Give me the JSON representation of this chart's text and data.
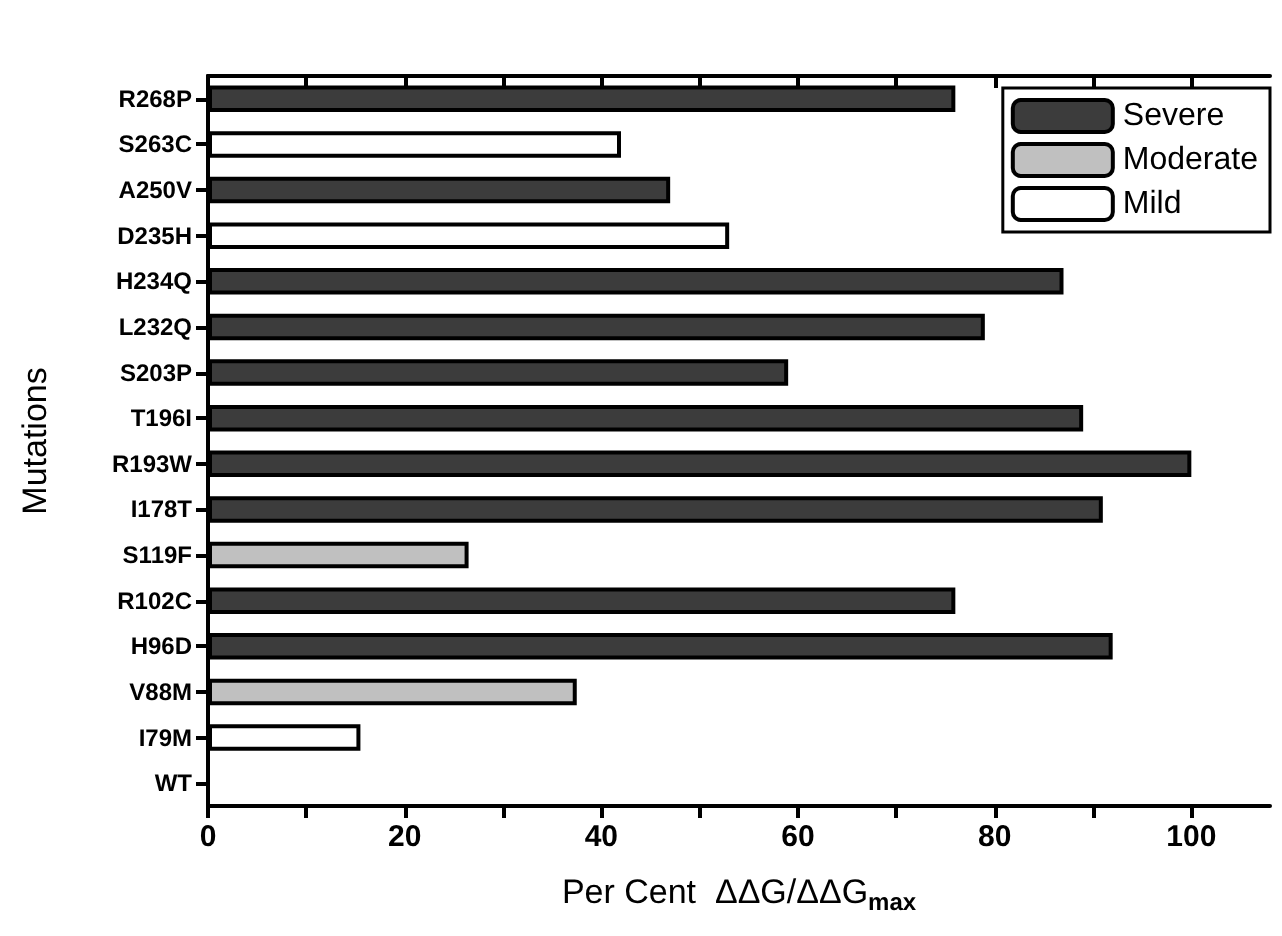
{
  "chart_data": {
    "type": "bar",
    "orientation": "horizontal",
    "stacked": true,
    "xlabel": "Per Cent  ΔΔG/ΔΔG$_{max}$",
    "ylabel": "Mutations",
    "categories": [
      "R268P",
      "S263C",
      "A250V",
      "D235H",
      "H234Q",
      "L232Q",
      "S203P",
      "T196I",
      "R193W",
      "I178T",
      "S119F",
      "R102C",
      "H96D",
      "V88M",
      "I79M",
      "WT"
    ],
    "series": [
      {
        "name": "Severe",
        "color": "#3c3c3c",
        "values": [
          76,
          null,
          47,
          null,
          87,
          79,
          59,
          89,
          100,
          91,
          null,
          76,
          92,
          null,
          null,
          null
        ]
      },
      {
        "name": "Moderate",
        "color": "#c0c0c0",
        "values": [
          null,
          null,
          null,
          null,
          null,
          null,
          null,
          null,
          null,
          null,
          26.5,
          null,
          null,
          37.5,
          null,
          null
        ]
      },
      {
        "name": "Mild",
        "color": "#ffffff",
        "values": [
          null,
          42,
          null,
          53,
          null,
          null,
          null,
          null,
          null,
          null,
          null,
          null,
          null,
          null,
          15.5,
          null
        ]
      }
    ],
    "xlim": [
      0,
      108
    ],
    "xticks": [
      0,
      {
        "value": 10,
        "label": null
      },
      20,
      {
        "value": 30,
        "label": null
      },
      40,
      {
        "value": 50,
        "label": null
      },
      60,
      {
        "value": 70,
        "label": null
      },
      80,
      {
        "value": 90,
        "label": null
      },
      100
    ],
    "grid": false,
    "legend": "top right"
  }
}
